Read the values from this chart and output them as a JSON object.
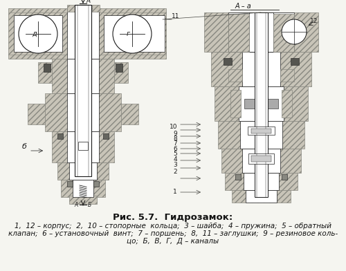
{
  "title": "Рис. 5.7.  Гидрозамок:",
  "caption_line1": "1,  12 – корпус;  2,  10 – стопорные  кольца;  3 – шайба;  4 – пружина;  5 – обратный",
  "caption_line2": "клапан;  6 – установочный  винт;  7 – поршень;  8,  11 – заглушки;  9 – резиновое коль-",
  "caption_line3": "цо;  Б,  В,  Г,  Д – каналы",
  "bg_color": "#f5f5f0",
  "hatch_color": "#888880",
  "hatch_fc": "#c8c4b8",
  "line_color": "#1a1a1a",
  "fig_width": 5.0,
  "fig_height": 3.92,
  "dpi": 100,
  "title_fontsize": 9.5,
  "caption_fontsize": 7.5
}
